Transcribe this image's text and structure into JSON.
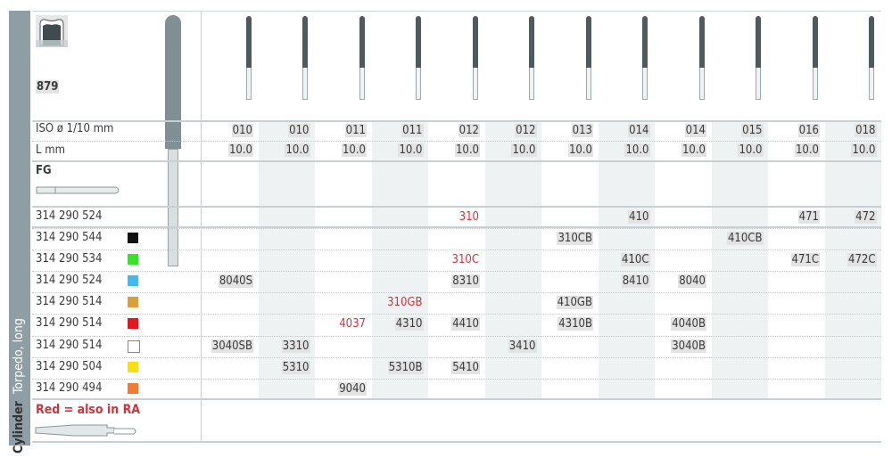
{
  "product": {
    "number": "879",
    "category": "Torpedo, long",
    "secondary_category": "Cylinder",
    "shank_type": "FG",
    "legend": "Red = also in RA",
    "icon": "tooth-crown-icon"
  },
  "header_rows": {
    "iso_label": "ISO ø 1/10 mm",
    "length_label": "L mm",
    "iso": [
      "010",
      "010",
      "011",
      "011",
      "012",
      "012",
      "013",
      "014",
      "014",
      "015",
      "016",
      "018"
    ],
    "length": [
      "10.0",
      "10.0",
      "10.0",
      "10.0",
      "10.0",
      "10.0",
      "10.0",
      "10.0",
      "10.0",
      "10.0",
      "10.0",
      "10.0"
    ]
  },
  "colors": {
    "red_text": "#d2333b",
    "sidebar": "#8e9ea4",
    "shade": "#eef2f3"
  },
  "rows": [
    {
      "ref": "314 290 524",
      "swatch": null,
      "cells": {
        "4": [
          "310",
          true
        ],
        "7": [
          "410",
          false
        ],
        "10": [
          "471",
          false
        ],
        "11": [
          "472",
          false
        ]
      }
    },
    {
      "ref": "314 290 544",
      "swatch": "#111111",
      "cells": {
        "6": [
          "310CB",
          false
        ],
        "9": [
          "410CB",
          false
        ]
      }
    },
    {
      "ref": "314 290 534",
      "swatch": "#39e22a",
      "cells": {
        "4": [
          "310C",
          true
        ],
        "7": [
          "410C",
          false
        ],
        "10": [
          "471C",
          false
        ],
        "11": [
          "472C",
          false
        ]
      }
    },
    {
      "ref": "314 290 524",
      "swatch": "#45b8ef",
      "cells": {
        "0": [
          "8040S",
          false
        ],
        "4": [
          "8310",
          false
        ],
        "7": [
          "8410",
          false
        ],
        "8": [
          "8040",
          false
        ]
      }
    },
    {
      "ref": "314 290 514",
      "swatch": "#d89f3a",
      "cells": {
        "3": [
          "310GB",
          true
        ],
        "6": [
          "410GB",
          false
        ]
      }
    },
    {
      "ref": "314 290 514",
      "swatch": "#e8161c",
      "cells": {
        "2": [
          "4037",
          true
        ],
        "3": [
          "4310",
          false
        ],
        "4": [
          "4410",
          false
        ],
        "6": [
          "4310B",
          false
        ],
        "8": [
          "4040B",
          false
        ]
      }
    },
    {
      "ref": "314 290 514",
      "swatch": "#ffffff",
      "cells": {
        "0": [
          "3040SB",
          false
        ],
        "1": [
          "3310",
          false
        ],
        "5": [
          "3410",
          false
        ],
        "8": [
          "3040B",
          false
        ]
      }
    },
    {
      "ref": "314 290 504",
      "swatch": "#f8df10",
      "cells": {
        "1": [
          "5310",
          false
        ],
        "3": [
          "5310B",
          false
        ],
        "4": [
          "5410",
          false
        ]
      }
    },
    {
      "ref": "314 290 494",
      "swatch": "#f57a35",
      "cells": {
        "2": [
          "9040",
          false
        ]
      }
    }
  ]
}
